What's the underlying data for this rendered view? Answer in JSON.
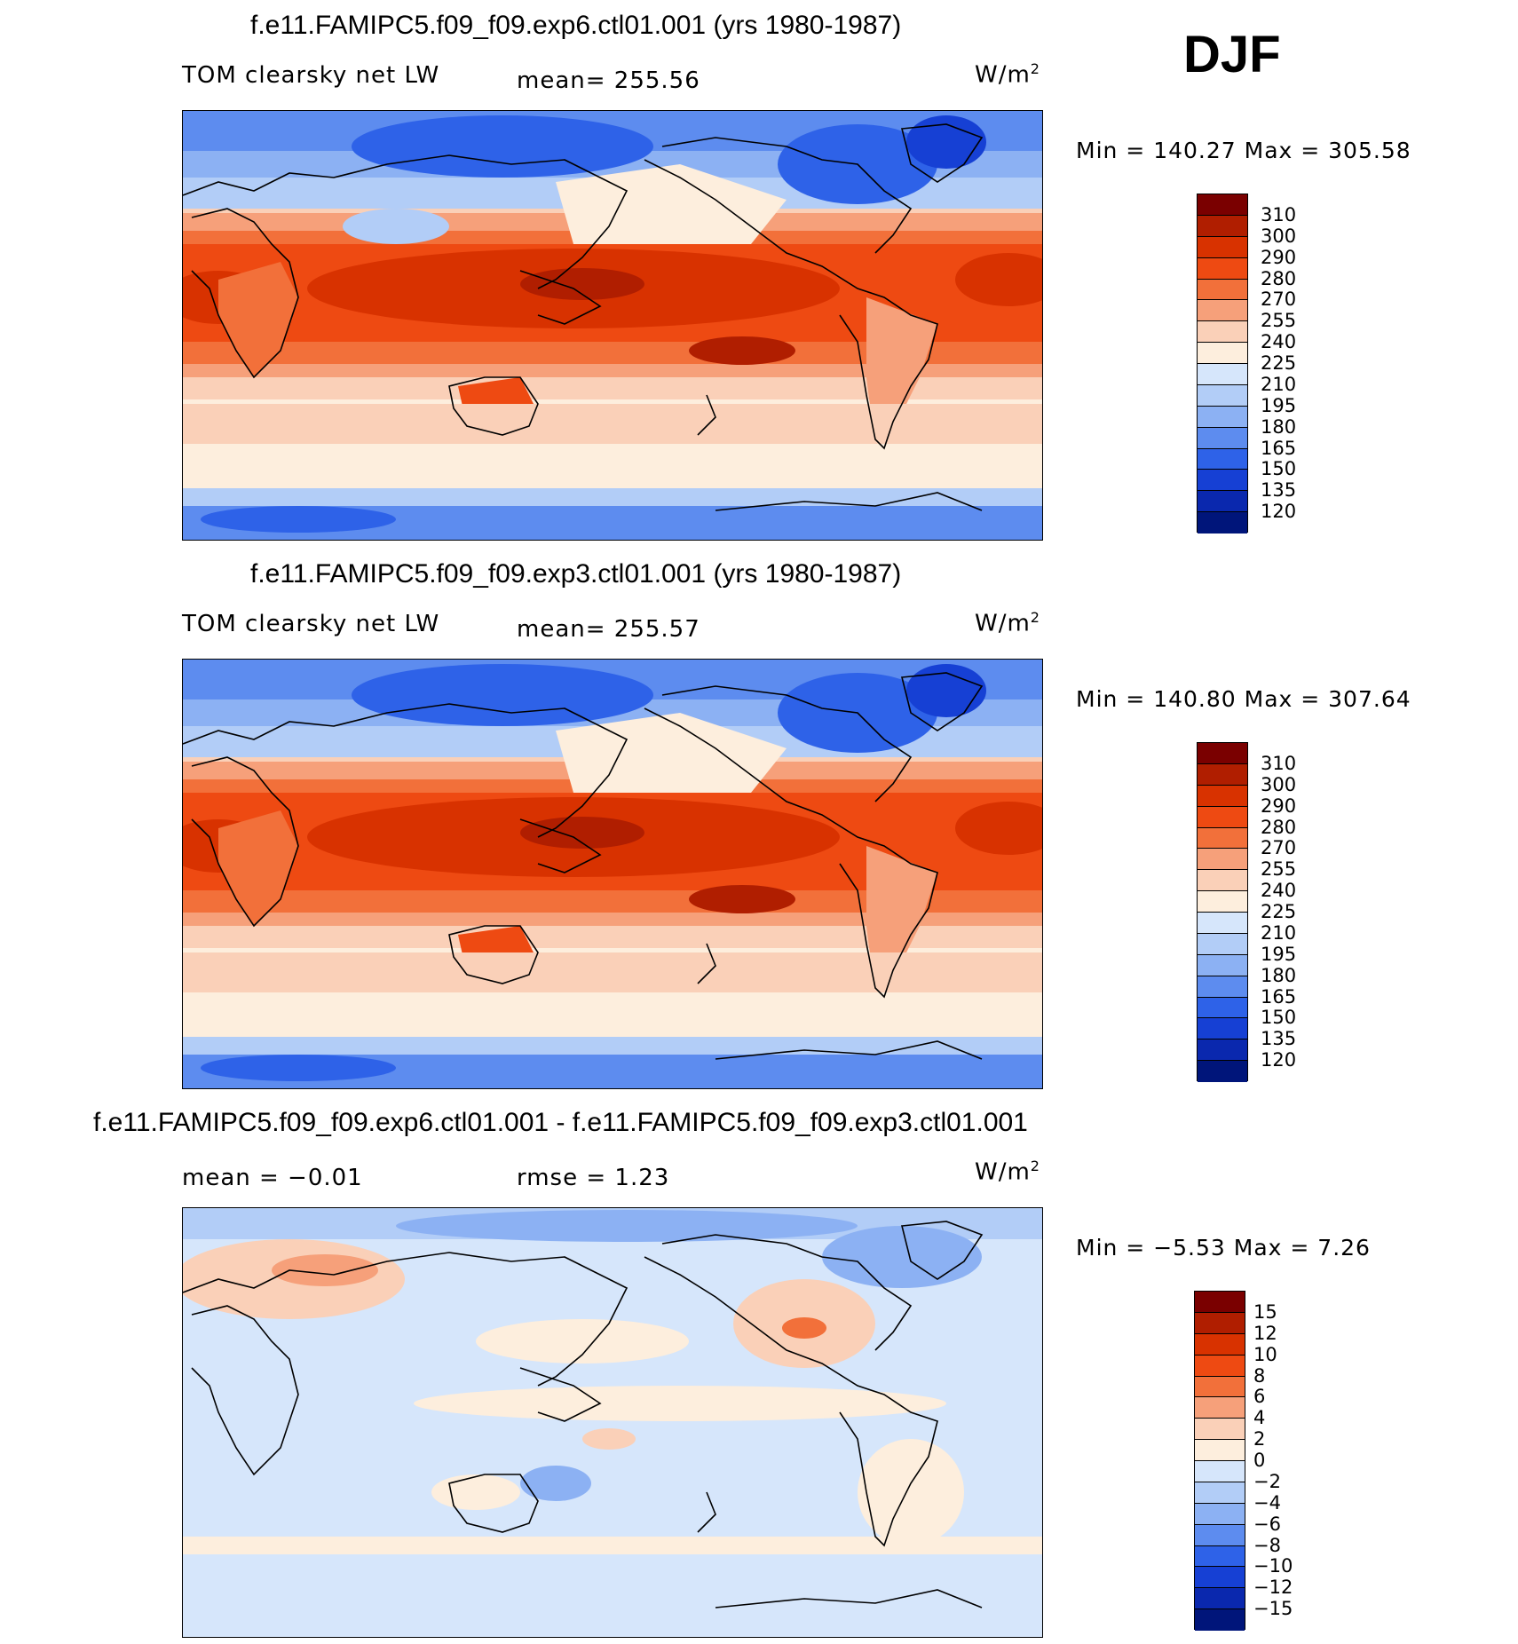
{
  "season": "DJF",
  "panels": [
    {
      "title": "f.e11.FAMIPC5.f09_f09.exp6.ctl01.001 (yrs 1980-1987)",
      "left_text": "TOM clearsky net LW",
      "center_text": "mean= 255.56",
      "units": "W/m",
      "units_sup": "2",
      "minmax": "Min = 140.27 Max = 305.58",
      "levels": [
        "310",
        "300",
        "290",
        "280",
        "270",
        "255",
        "240",
        "225",
        "210",
        "195",
        "180",
        "165",
        "150",
        "135",
        "120"
      ],
      "colors": [
        "#7a0000",
        "#b01e00",
        "#d83200",
        "#ee4a12",
        "#f2703a",
        "#f6a07a",
        "#fad0b8",
        "#fdeedd",
        "#d6e6fb",
        "#b2cdf7",
        "#8cb1f3",
        "#5d8cef",
        "#2e62e8",
        "#1640d4",
        "#0a28ae",
        "#00157a"
      ]
    },
    {
      "title": "f.e11.FAMIPC5.f09_f09.exp3.ctl01.001 (yrs 1980-1987)",
      "left_text": "TOM clearsky net LW",
      "center_text": "mean= 255.57",
      "units": "W/m",
      "units_sup": "2",
      "minmax": "Min = 140.80 Max = 307.64",
      "levels": [
        "310",
        "300",
        "290",
        "280",
        "270",
        "255",
        "240",
        "225",
        "210",
        "195",
        "180",
        "165",
        "150",
        "135",
        "120"
      ],
      "colors": [
        "#7a0000",
        "#b01e00",
        "#d83200",
        "#ee4a12",
        "#f2703a",
        "#f6a07a",
        "#fad0b8",
        "#fdeedd",
        "#d6e6fb",
        "#b2cdf7",
        "#8cb1f3",
        "#5d8cef",
        "#2e62e8",
        "#1640d4",
        "#0a28ae",
        "#00157a"
      ]
    },
    {
      "title": "f.e11.FAMIPC5.f09_f09.exp6.ctl01.001 - f.e11.FAMIPC5.f09_f09.exp3.ctl01.001",
      "left_text": "mean =  −0.01",
      "center_text": "rmse =    1.23",
      "units": "W/m",
      "units_sup": "2",
      "minmax": "Min =  −5.53 Max =    7.26",
      "levels": [
        "15",
        "12",
        "10",
        "8",
        "6",
        "4",
        "2",
        "0",
        "−2",
        "−4",
        "−6",
        "−8",
        "−10",
        "−12",
        "−15"
      ],
      "colors": [
        "#7a0000",
        "#b01e00",
        "#d83200",
        "#ee4a12",
        "#f2703a",
        "#f6a07a",
        "#fad0b8",
        "#fdeedd",
        "#d6e6fb",
        "#b2cdf7",
        "#8cb1f3",
        "#5d8cef",
        "#2e62e8",
        "#1640d4",
        "#0a28ae",
        "#00157a"
      ]
    }
  ]
}
